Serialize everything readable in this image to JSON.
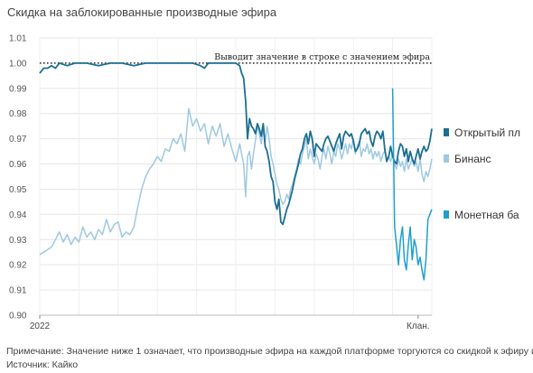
{
  "title": "Скидка на заблокированные производные эфира",
  "note": "Примечание: Значение ниже 1 означает, что производные эфира на каждой платформе торгуются со скидкой к эфиру и",
  "source": "Источник: Кайко",
  "chart_data": {
    "type": "line",
    "ylim": [
      0.9,
      1.01
    ],
    "yticks": [
      "1.01",
      "1.00",
      "0.99",
      "0.98",
      "0.97",
      "0.96",
      "0.95",
      "0.94",
      "0.93",
      "0.92",
      "0.91",
      "0.90"
    ],
    "xticks": [
      "2022",
      "Клан."
    ],
    "grid": true,
    "legend_position": "right",
    "reference_line": {
      "value": 1.0,
      "label": "Выводит значение в строке с значением эфира"
    },
    "series": [
      {
        "name": "Открытый пл",
        "color": "#1b6f93",
        "points": [
          [
            0.0,
            0.996
          ],
          [
            0.01,
            0.998
          ],
          [
            0.02,
            0.998
          ],
          [
            0.03,
            0.999
          ],
          [
            0.04,
            0.998
          ],
          [
            0.05,
            1.0
          ],
          [
            0.07,
            0.999
          ],
          [
            0.09,
            1.0
          ],
          [
            0.12,
            1.0
          ],
          [
            0.15,
            0.999
          ],
          [
            0.18,
            1.0
          ],
          [
            0.21,
            1.0
          ],
          [
            0.24,
            0.999
          ],
          [
            0.27,
            1.0
          ],
          [
            0.3,
            1.0
          ],
          [
            0.33,
            1.0
          ],
          [
            0.36,
            1.0
          ],
          [
            0.39,
            1.0
          ],
          [
            0.41,
            0.999
          ],
          [
            0.42,
            0.998
          ],
          [
            0.43,
            1.0
          ],
          [
            0.45,
            1.0
          ],
          [
            0.47,
            1.0
          ],
          [
            0.49,
            1.0
          ],
          [
            0.5,
            1.0
          ],
          [
            0.51,
            0.999
          ],
          [
            0.515,
            0.996
          ],
          [
            0.52,
            0.994
          ],
          [
            0.525,
            0.985
          ],
          [
            0.53,
            0.97
          ],
          [
            0.535,
            0.978
          ],
          [
            0.54,
            0.975
          ],
          [
            0.545,
            0.974
          ],
          [
            0.55,
            0.972
          ],
          [
            0.555,
            0.976
          ],
          [
            0.56,
            0.974
          ],
          [
            0.565,
            0.971
          ],
          [
            0.57,
            0.976
          ],
          [
            0.575,
            0.967
          ],
          [
            0.58,
            0.965
          ],
          [
            0.585,
            0.961
          ],
          [
            0.59,
            0.955
          ],
          [
            0.595,
            0.953
          ],
          [
            0.6,
            0.945
          ],
          [
            0.605,
            0.942
          ],
          [
            0.61,
            0.946
          ],
          [
            0.615,
            0.937
          ],
          [
            0.62,
            0.936
          ],
          [
            0.625,
            0.939
          ],
          [
            0.63,
            0.942
          ],
          [
            0.635,
            0.944
          ],
          [
            0.64,
            0.947
          ],
          [
            0.645,
            0.95
          ],
          [
            0.65,
            0.954
          ],
          [
            0.655,
            0.957
          ],
          [
            0.66,
            0.96
          ],
          [
            0.665,
            0.964
          ],
          [
            0.67,
            0.966
          ],
          [
            0.675,
            0.97
          ],
          [
            0.68,
            0.972
          ],
          [
            0.685,
            0.968
          ],
          [
            0.69,
            0.973
          ],
          [
            0.695,
            0.97
          ],
          [
            0.7,
            0.963
          ],
          [
            0.705,
            0.968
          ],
          [
            0.71,
            0.967
          ],
          [
            0.715,
            0.966
          ],
          [
            0.72,
            0.965
          ],
          [
            0.725,
            0.968
          ],
          [
            0.73,
            0.97
          ],
          [
            0.735,
            0.971
          ],
          [
            0.74,
            0.969
          ],
          [
            0.745,
            0.967
          ],
          [
            0.75,
            0.965
          ],
          [
            0.755,
            0.968
          ],
          [
            0.76,
            0.97
          ],
          [
            0.765,
            0.972
          ],
          [
            0.77,
            0.966
          ],
          [
            0.775,
            0.971
          ],
          [
            0.78,
            0.973
          ],
          [
            0.785,
            0.972
          ],
          [
            0.79,
            0.971
          ],
          [
            0.795,
            0.972
          ],
          [
            0.8,
            0.969
          ],
          [
            0.805,
            0.965
          ],
          [
            0.81,
            0.966
          ],
          [
            0.815,
            0.968
          ],
          [
            0.82,
            0.972
          ],
          [
            0.825,
            0.973
          ],
          [
            0.83,
            0.974
          ],
          [
            0.835,
            0.972
          ],
          [
            0.84,
            0.973
          ],
          [
            0.845,
            0.969
          ],
          [
            0.85,
            0.967
          ],
          [
            0.855,
            0.971
          ],
          [
            0.86,
            0.973
          ],
          [
            0.865,
            0.972
          ],
          [
            0.87,
            0.97
          ],
          [
            0.875,
            0.973
          ],
          [
            0.88,
            0.966
          ],
          [
            0.885,
            0.961
          ],
          [
            0.89,
            0.963
          ],
          [
            0.895,
            0.967
          ],
          [
            0.9,
            0.963
          ],
          [
            0.905,
            0.961
          ],
          [
            0.91,
            0.96
          ],
          [
            0.915,
            0.965
          ],
          [
            0.92,
            0.968
          ],
          [
            0.925,
            0.967
          ],
          [
            0.93,
            0.963
          ],
          [
            0.935,
            0.966
          ],
          [
            0.94,
            0.961
          ],
          [
            0.945,
            0.965
          ],
          [
            0.95,
            0.962
          ],
          [
            0.955,
            0.96
          ],
          [
            0.96,
            0.963
          ],
          [
            0.965,
            0.966
          ],
          [
            0.97,
            0.962
          ],
          [
            0.975,
            0.965
          ],
          [
            0.98,
            0.967
          ],
          [
            0.985,
            0.965
          ],
          [
            0.99,
            0.966
          ],
          [
            0.995,
            0.969
          ],
          [
            1.0,
            0.974
          ]
        ]
      },
      {
        "name": "Бинанс",
        "color": "#9ec9e2",
        "points": [
          [
            0.0,
            0.924
          ],
          [
            0.01,
            0.925
          ],
          [
            0.02,
            0.926
          ],
          [
            0.03,
            0.927
          ],
          [
            0.04,
            0.93
          ],
          [
            0.05,
            0.933
          ],
          [
            0.06,
            0.929
          ],
          [
            0.07,
            0.932
          ],
          [
            0.08,
            0.928
          ],
          [
            0.09,
            0.931
          ],
          [
            0.1,
            0.929
          ],
          [
            0.11,
            0.935
          ],
          [
            0.12,
            0.931
          ],
          [
            0.13,
            0.933
          ],
          [
            0.14,
            0.93
          ],
          [
            0.15,
            0.934
          ],
          [
            0.16,
            0.932
          ],
          [
            0.17,
            0.938
          ],
          [
            0.18,
            0.933
          ],
          [
            0.19,
            0.936
          ],
          [
            0.2,
            0.937
          ],
          [
            0.21,
            0.931
          ],
          [
            0.22,
            0.933
          ],
          [
            0.23,
            0.932
          ],
          [
            0.24,
            0.935
          ],
          [
            0.25,
            0.943
          ],
          [
            0.26,
            0.95
          ],
          [
            0.27,
            0.955
          ],
          [
            0.28,
            0.958
          ],
          [
            0.29,
            0.96
          ],
          [
            0.3,
            0.963
          ],
          [
            0.31,
            0.961
          ],
          [
            0.32,
            0.966
          ],
          [
            0.33,
            0.965
          ],
          [
            0.34,
            0.97
          ],
          [
            0.35,
            0.968
          ],
          [
            0.36,
            0.972
          ],
          [
            0.37,
            0.965
          ],
          [
            0.38,
            0.982
          ],
          [
            0.39,
            0.975
          ],
          [
            0.4,
            0.978
          ],
          [
            0.41,
            0.973
          ],
          [
            0.42,
            0.976
          ],
          [
            0.43,
            0.968
          ],
          [
            0.44,
            0.975
          ],
          [
            0.45,
            0.971
          ],
          [
            0.46,
            0.976
          ],
          [
            0.47,
            0.967
          ],
          [
            0.48,
            0.972
          ],
          [
            0.49,
            0.966
          ],
          [
            0.5,
            0.961
          ],
          [
            0.51,
            0.968
          ],
          [
            0.52,
            0.96
          ],
          [
            0.525,
            0.947
          ],
          [
            0.53,
            0.963
          ],
          [
            0.535,
            0.965
          ],
          [
            0.54,
            0.958
          ],
          [
            0.545,
            0.964
          ],
          [
            0.55,
            0.969
          ],
          [
            0.555,
            0.975
          ],
          [
            0.56,
            0.972
          ],
          [
            0.565,
            0.968
          ],
          [
            0.57,
            0.974
          ],
          [
            0.575,
            0.969
          ],
          [
            0.58,
            0.975
          ],
          [
            0.585,
            0.97
          ],
          [
            0.59,
            0.963
          ],
          [
            0.595,
            0.96
          ],
          [
            0.6,
            0.956
          ],
          [
            0.605,
            0.952
          ],
          [
            0.61,
            0.95
          ],
          [
            0.615,
            0.946
          ],
          [
            0.62,
            0.944
          ],
          [
            0.625,
            0.945
          ],
          [
            0.63,
            0.948
          ],
          [
            0.635,
            0.946
          ],
          [
            0.64,
            0.95
          ],
          [
            0.645,
            0.952
          ],
          [
            0.65,
            0.955
          ],
          [
            0.655,
            0.958
          ],
          [
            0.66,
            0.962
          ],
          [
            0.665,
            0.96
          ],
          [
            0.67,
            0.964
          ],
          [
            0.675,
            0.967
          ],
          [
            0.68,
            0.97
          ],
          [
            0.685,
            0.962
          ],
          [
            0.69,
            0.966
          ],
          [
            0.695,
            0.963
          ],
          [
            0.7,
            0.96
          ],
          [
            0.705,
            0.964
          ],
          [
            0.71,
            0.962
          ],
          [
            0.715,
            0.958
          ],
          [
            0.72,
            0.963
          ],
          [
            0.725,
            0.966
          ],
          [
            0.73,
            0.962
          ],
          [
            0.735,
            0.967
          ],
          [
            0.74,
            0.964
          ],
          [
            0.745,
            0.96
          ],
          [
            0.75,
            0.965
          ],
          [
            0.755,
            0.963
          ],
          [
            0.76,
            0.968
          ],
          [
            0.765,
            0.966
          ],
          [
            0.77,
            0.962
          ],
          [
            0.775,
            0.965
          ],
          [
            0.78,
            0.968
          ],
          [
            0.785,
            0.964
          ],
          [
            0.79,
            0.968
          ],
          [
            0.795,
            0.966
          ],
          [
            0.8,
            0.97
          ],
          [
            0.805,
            0.964
          ],
          [
            0.81,
            0.967
          ],
          [
            0.815,
            0.969
          ],
          [
            0.82,
            0.963
          ],
          [
            0.825,
            0.966
          ],
          [
            0.83,
            0.965
          ],
          [
            0.835,
            0.968
          ],
          [
            0.84,
            0.964
          ],
          [
            0.845,
            0.966
          ],
          [
            0.85,
            0.962
          ],
          [
            0.855,
            0.965
          ],
          [
            0.86,
            0.963
          ],
          [
            0.865,
            0.965
          ],
          [
            0.87,
            0.961
          ],
          [
            0.875,
            0.964
          ],
          [
            0.88,
            0.965
          ],
          [
            0.885,
            0.962
          ],
          [
            0.89,
            0.963
          ],
          [
            0.895,
            0.961
          ],
          [
            0.9,
            0.964
          ],
          [
            0.905,
            0.96
          ],
          [
            0.91,
            0.958
          ],
          [
            0.915,
            0.962
          ],
          [
            0.92,
            0.959
          ],
          [
            0.925,
            0.961
          ],
          [
            0.93,
            0.957
          ],
          [
            0.935,
            0.962
          ],
          [
            0.94,
            0.958
          ],
          [
            0.945,
            0.96
          ],
          [
            0.95,
            0.962
          ],
          [
            0.955,
            0.959
          ],
          [
            0.96,
            0.961
          ],
          [
            0.965,
            0.957
          ],
          [
            0.97,
            0.962
          ],
          [
            0.975,
            0.956
          ],
          [
            0.98,
            0.953
          ],
          [
            0.985,
            0.957
          ],
          [
            0.99,
            0.955
          ],
          [
            0.995,
            0.958
          ],
          [
            1.0,
            0.962
          ]
        ]
      },
      {
        "name": "Монетная ба",
        "color": "#1e9fd0",
        "points": [
          [
            0.9,
            0.99
          ],
          [
            0.905,
            0.935
          ],
          [
            0.91,
            0.928
          ],
          [
            0.915,
            0.92
          ],
          [
            0.92,
            0.93
          ],
          [
            0.925,
            0.935
          ],
          [
            0.93,
            0.922
          ],
          [
            0.935,
            0.918
          ],
          [
            0.94,
            0.928
          ],
          [
            0.945,
            0.935
          ],
          [
            0.95,
            0.922
          ],
          [
            0.955,
            0.93
          ],
          [
            0.96,
            0.927
          ],
          [
            0.965,
            0.92
          ],
          [
            0.97,
            0.923
          ],
          [
            0.975,
            0.918
          ],
          [
            0.98,
            0.914
          ],
          [
            0.985,
            0.922
          ],
          [
            0.99,
            0.938
          ],
          [
            0.995,
            0.94
          ],
          [
            1.0,
            0.942
          ]
        ]
      }
    ]
  }
}
